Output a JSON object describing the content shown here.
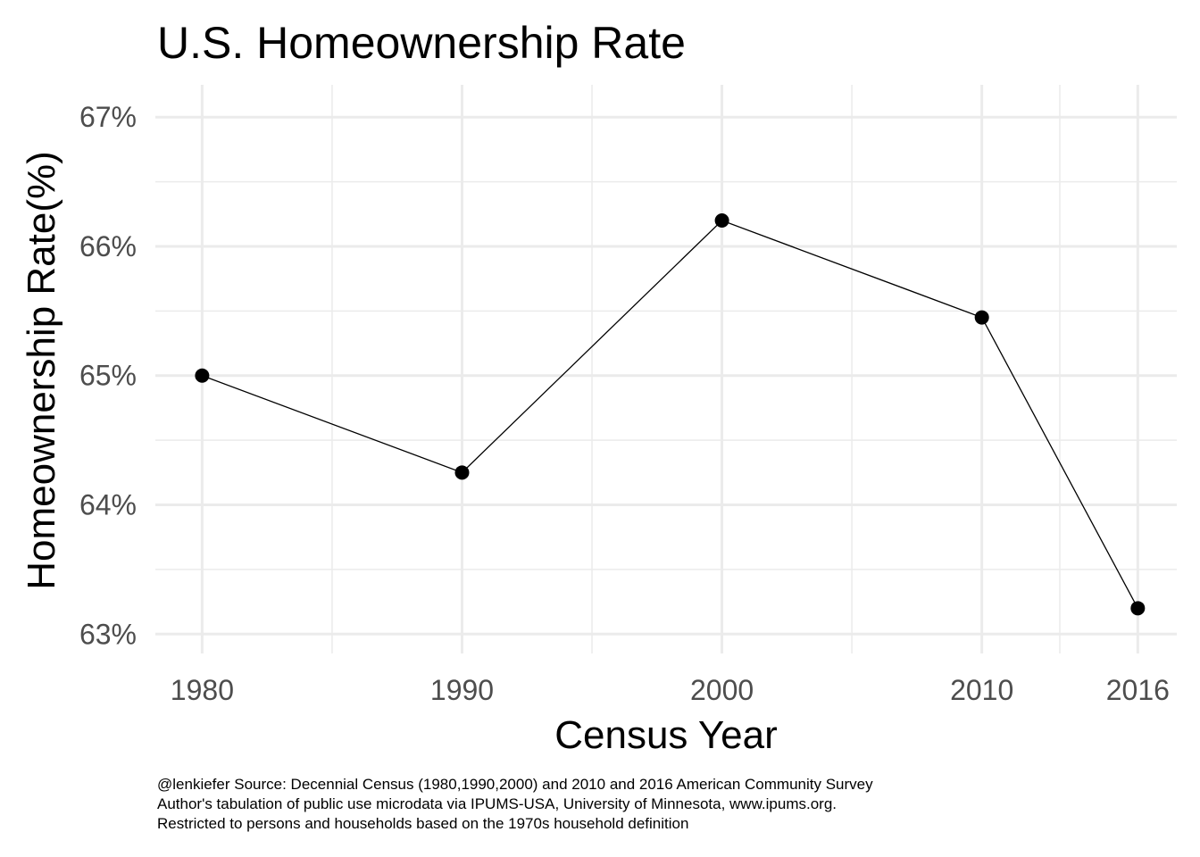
{
  "chart_data": {
    "type": "line",
    "title": "U.S. Homeownership Rate",
    "xlabel": "Census Year",
    "ylabel": "Homeownership Rate(%)",
    "x": [
      1980,
      1990,
      2000,
      2010,
      2016
    ],
    "series": [
      {
        "values": [
          65.0,
          64.25,
          66.2,
          65.45,
          63.2
        ]
      }
    ],
    "x_ticks": [
      1980,
      1990,
      2000,
      2010,
      2016
    ],
    "x_tick_labels": [
      "1980",
      "1990",
      "2000",
      "2010",
      "2016"
    ],
    "y_ticks": [
      63,
      64,
      65,
      66,
      67
    ],
    "y_tick_labels": [
      "63%",
      "64%",
      "65%",
      "66%",
      "67%"
    ],
    "xlim": [
      1978.2,
      2017.5
    ],
    "ylim": [
      62.85,
      67.25
    ],
    "grid": true,
    "legend": "none",
    "line_color": "#000000",
    "point_color": "#000000",
    "caption": [
      "@lenkiefer Source: Decennial Census (1980,1990,2000) and 2010 and 2016 American Community Survey",
      "Author's tabulation of public use microdata via IPUMS-USA, University of Minnesota, www.ipums.org.",
      "Restricted to persons and households based on the 1970s household definition"
    ]
  }
}
